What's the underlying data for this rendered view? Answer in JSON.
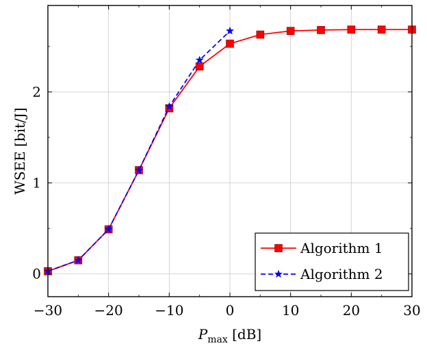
{
  "chart_data": {
    "type": "line",
    "title": "",
    "xlabel_main": "P",
    "xlabel_sub": "max",
    "xlabel_unit": " [dB]",
    "ylabel": "WSEE [bit/J]",
    "xlim": [
      -30,
      30
    ],
    "ylim": [
      -0.25,
      2.95
    ],
    "xticks": [
      -30,
      -20,
      -10,
      0,
      10,
      20,
      30
    ],
    "xtick_labels": [
      "−30",
      "−20",
      "−10",
      "0",
      "10",
      "20",
      "30"
    ],
    "yticks": [
      0,
      1,
      2
    ],
    "ytick_labels": [
      "0",
      "1",
      "2"
    ],
    "grid": true,
    "legend_position": "bottom-right",
    "series": [
      {
        "name": "Algorithm 1",
        "color": "#ff0000",
        "line_style": "solid",
        "marker": "square",
        "x": [
          -30,
          -25,
          -20,
          -15,
          -10,
          -5,
          0,
          5,
          10,
          15,
          20,
          25,
          30
        ],
        "y": [
          0.03,
          0.15,
          0.49,
          1.14,
          1.82,
          2.28,
          2.53,
          2.63,
          2.67,
          2.68,
          2.685,
          2.685,
          2.685
        ]
      },
      {
        "name": "Algorithm 2",
        "color": "#0000ff",
        "line_style": "dashed",
        "marker": "star",
        "x": [
          -30,
          -25,
          -20,
          -15,
          -10,
          -5,
          0
        ],
        "y": [
          0.03,
          0.15,
          0.49,
          1.14,
          1.84,
          2.35,
          2.67
        ]
      }
    ]
  }
}
